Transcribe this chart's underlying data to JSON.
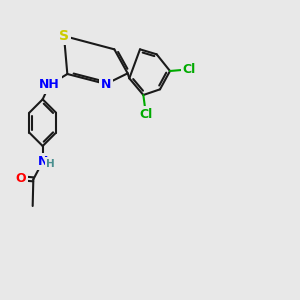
{
  "bg_color": "#e8e8e8",
  "bond_color": "#1a1a1a",
  "bond_lw": 1.5,
  "atom_colors": {
    "S": "#cccc00",
    "N": "#0000ff",
    "O": "#ff0000",
    "Cl": "#00aa00",
    "H": "#4a9090",
    "C": "#1a1a1a"
  },
  "font_size": 8.5,
  "font_size_small": 7.5
}
